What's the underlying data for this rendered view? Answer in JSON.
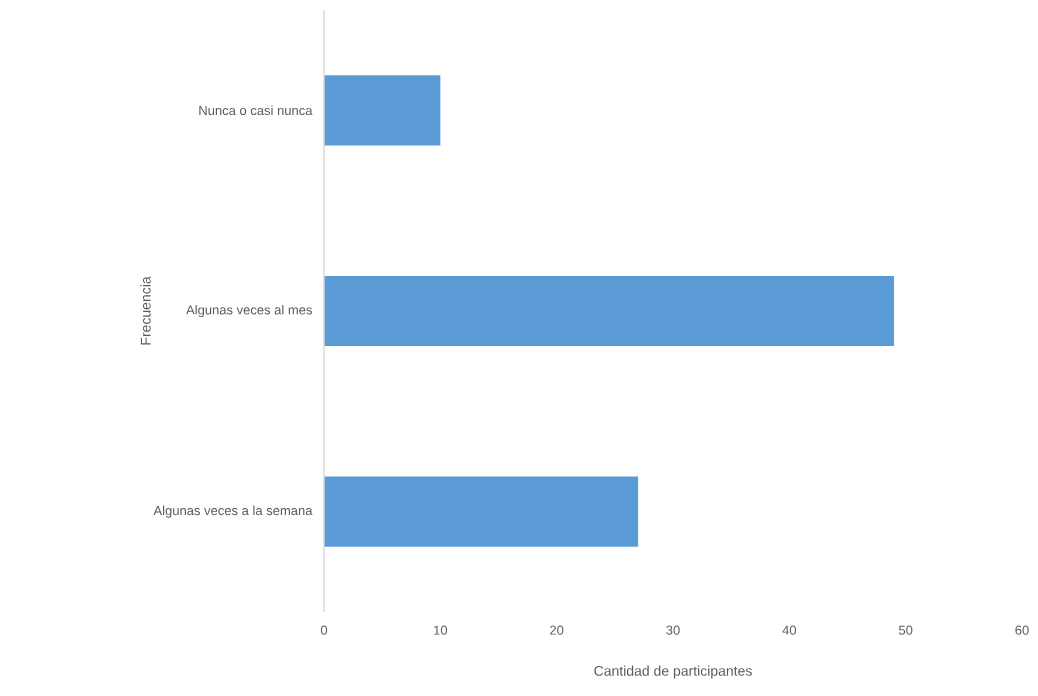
{
  "chart_data": {
    "type": "bar",
    "orientation": "horizontal",
    "xlabel": "Cantidad de participantes",
    "ylabel": "Frecuencia",
    "categories": [
      "Nunca o casi nunca",
      "Algunas veces al mes",
      "Algunas veces a la semana"
    ],
    "values": [
      10,
      49,
      27
    ],
    "color": "#5b9bd5",
    "xlim": [
      0,
      60
    ],
    "xticks": [
      0,
      10,
      20,
      30,
      40,
      50,
      60
    ]
  }
}
